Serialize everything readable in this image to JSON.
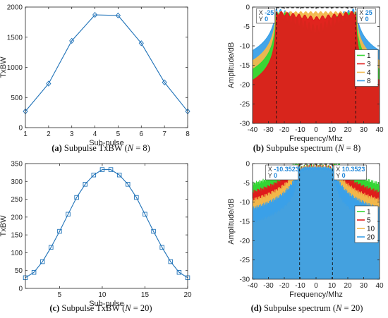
{
  "chart_data": [
    {
      "type": "line",
      "x": [
        1,
        2,
        3,
        4,
        5,
        6,
        7,
        8
      ],
      "series": [
        {
          "values": [
            270,
            730,
            1440,
            1870,
            1860,
            1400,
            750,
            270
          ]
        }
      ],
      "xlabel": "Sub-pulse",
      "ylabel": "TxBW",
      "xlim": [
        1,
        8
      ],
      "ylim": [
        0,
        2000
      ],
      "xticks": [
        1,
        2,
        3,
        4,
        5,
        6,
        7,
        8
      ],
      "yticks": [
        0,
        500,
        1000,
        1500,
        2000
      ],
      "marker": "diamond",
      "color": "#1f72b8",
      "caption": {
        "letter": "(a)",
        "text": " Subpulse TxBW (",
        "var": "N",
        "eq": " = 8)"
      }
    },
    {
      "type": "line",
      "xlabel": "Frequency/Mhz",
      "ylabel": "Amplitude/dB",
      "xlim": [
        -40,
        40
      ],
      "ylim": [
        -30,
        0
      ],
      "xticks": [
        -40,
        -30,
        -20,
        -10,
        0,
        10,
        20,
        30,
        40
      ],
      "yticks": [
        -30,
        -25,
        -20,
        -15,
        -10,
        -5,
        0
      ],
      "legend_position": "right",
      "series": [
        {
          "name": "1",
          "color": "#33d633"
        },
        {
          "name": "3",
          "color": "#e01b1b"
        },
        {
          "name": "4",
          "color": "#f2b74a"
        },
        {
          "name": "8",
          "color": "#3aa0e8"
        }
      ],
      "band_edge": 25,
      "datatips": [
        {
          "x_label": "X",
          "x_value": "-25",
          "y_label": "Y",
          "y_value": "0"
        },
        {
          "x_label": "X",
          "x_value": "25",
          "y_label": "Y",
          "y_value": "0"
        }
      ],
      "caption": {
        "letter": "(b)",
        "text": " Subpulse spectrum (",
        "var": "N",
        "eq": " = 8)"
      }
    },
    {
      "type": "line",
      "x": [
        1,
        2,
        3,
        4,
        5,
        6,
        7,
        8,
        9,
        10,
        11,
        12,
        13,
        14,
        15,
        16,
        17,
        18,
        19,
        20
      ],
      "series": [
        {
          "values": [
            30,
            45,
            75,
            115,
            160,
            208,
            255,
            292,
            318,
            333,
            333,
            318,
            292,
            255,
            208,
            160,
            115,
            75,
            45,
            30
          ]
        }
      ],
      "xlabel": "Sub-pulse",
      "ylabel": "TxBW",
      "xlim": [
        1,
        20
      ],
      "ylim": [
        0,
        350
      ],
      "xticks": [
        5,
        10,
        15,
        20
      ],
      "yticks": [
        0,
        50,
        100,
        150,
        200,
        250,
        300,
        350
      ],
      "marker": "square",
      "color": "#1f72b8",
      "caption": {
        "letter": "(c)",
        "text": " Subpulse TxBW (",
        "var": "N",
        "eq": " = 20)"
      }
    },
    {
      "type": "line",
      "xlabel": "Frequency/Mhz",
      "ylabel": "Amplitude/dB",
      "xlim": [
        -40,
        40
      ],
      "ylim": [
        -30,
        0
      ],
      "xticks": [
        -40,
        -30,
        -20,
        -10,
        0,
        10,
        20,
        30,
        40
      ],
      "yticks": [
        -30,
        -25,
        -20,
        -15,
        -10,
        -5,
        0
      ],
      "legend_position": "right",
      "series": [
        {
          "name": "1",
          "color": "#33d633"
        },
        {
          "name": "5",
          "color": "#e01b1b"
        },
        {
          "name": "10",
          "color": "#f2b74a"
        },
        {
          "name": "20",
          "color": "#3aa0e8"
        }
      ],
      "band_edge": 10.3523,
      "datatips": [
        {
          "x_label": "X",
          "x_value": "-10.3523",
          "y_label": "Y",
          "y_value": "0"
        },
        {
          "x_label": "X",
          "x_value": "10.3523",
          "y_label": "Y",
          "y_value": "0"
        }
      ],
      "caption": {
        "letter": "(d)",
        "text": " Subpulse spectrum (",
        "var": "N",
        "eq": " = 20)"
      }
    }
  ]
}
